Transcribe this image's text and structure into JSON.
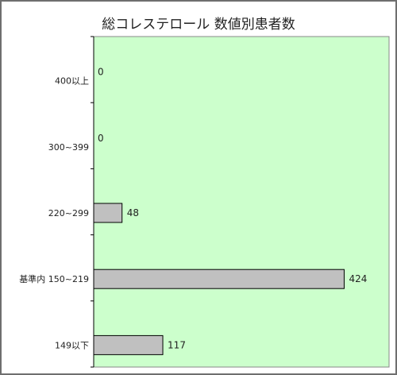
{
  "chart_data": {
    "type": "bar",
    "orientation": "horizontal",
    "title": "総コレステロール 数値別患者数",
    "xlabel": "",
    "ylabel": "",
    "categories": [
      "400以上",
      "300~399",
      "220~299",
      "基準内 150~219",
      "149以下"
    ],
    "values": [
      0,
      0,
      48,
      424,
      117
    ],
    "xlim": [
      0,
      500
    ],
    "grid": false,
    "legend": "none",
    "colors": {
      "plot_background": "#ccffcc",
      "bar_fill": "#c0c0c0",
      "bar_stroke": "#000000",
      "axis": "#000000",
      "text": "#222222"
    }
  }
}
